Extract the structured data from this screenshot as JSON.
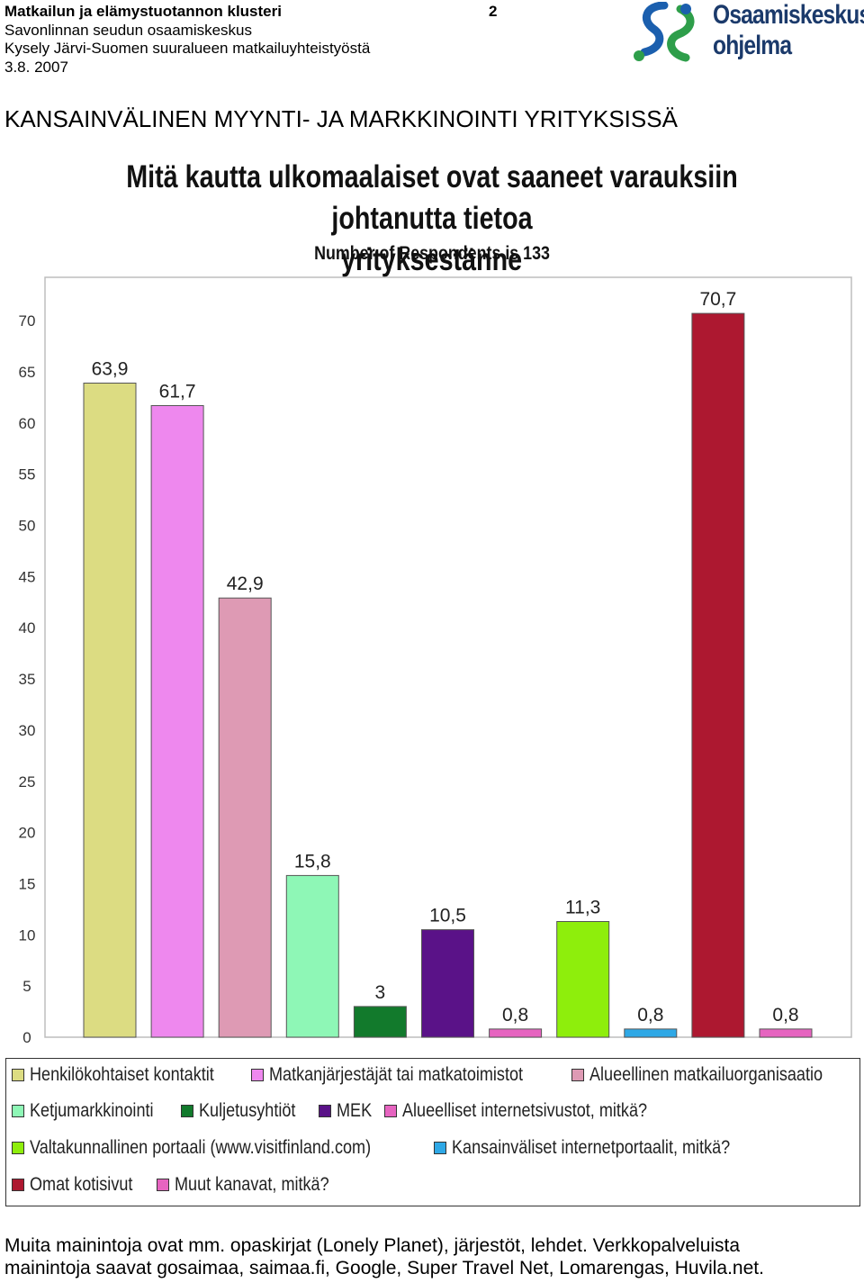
{
  "header": {
    "line1": "Matkailun ja elämystuotannon klusteri",
    "line2": "Savonlinnan seudun osaamiskeskus",
    "line3": "Kysely Järvi-Suomen suuralueen matkailuyhteistyöstä",
    "line4": "3.8. 2007",
    "page_number": "2"
  },
  "logo": {
    "line1": "Osaamiskeskus-",
    "line2": "ohjelma",
    "colors": {
      "blue": "#1b5fae",
      "green": "#2e9e4a"
    }
  },
  "section_title": "KANSAINVÄLINEN MYYNTI- JA MARKKINOINTI YRITYKSISSÄ",
  "chart_data": {
    "type": "bar",
    "title_line1": "Mitä kautta ulkomaalaiset ovat saaneet varauksiin johtanutta tietoa",
    "title_line2": "yrityksestänne",
    "subtitle": "Number of Respondents is 133",
    "ylim": [
      0,
      75
    ],
    "yticks": [
      "0",
      "5",
      "10",
      "15",
      "20",
      "25",
      "30",
      "35",
      "40",
      "45",
      "50",
      "55",
      "60",
      "65",
      "70"
    ],
    "legend_position": "bottom",
    "grid": false,
    "categories": [
      "Henkilökohtaiset kontaktit",
      "Matkanjärjestäjät tai matkatoimistot",
      "Alueellinen matkailuorganisaatio",
      "Ketjumarkkinointi",
      "Kuljetusyhtiöt",
      "MEK",
      "Alueelliset internetsivustot, mitkä?",
      "Valtakunnallinen portaali (www.visitfinland.com)",
      "Kansainväliset internetportaalit, mitkä?",
      "Omat kotisivut",
      "Muut kanavat, mitkä?"
    ],
    "values": [
      63.9,
      61.7,
      42.9,
      15.8,
      3,
      10.5,
      0.8,
      11.3,
      0.8,
      70.7,
      0.8
    ],
    "value_labels": [
      "63,9",
      "61,7",
      "42,9",
      "15,8",
      "3",
      "10,5",
      "0,8",
      "11,3",
      "0,8",
      "70,7",
      "0,8"
    ],
    "colors": [
      "#dcdc82",
      "#ee88ee",
      "#de9ab4",
      "#8ef7b6",
      "#127a2c",
      "#5a1288",
      "#e664c0",
      "#8eee0c",
      "#2ea8e6",
      "#ad1830",
      "#e664c0"
    ]
  },
  "note": {
    "line1": "Muita mainintoja ovat mm. opaskirjat (Lonely Planet), järjestöt, lehdet. Verkkopalveluista",
    "line2": "mainintoja saavat gosaimaa, saimaa.fi, Google, Super Travel Net, Lomarengas, Huvila.net."
  }
}
